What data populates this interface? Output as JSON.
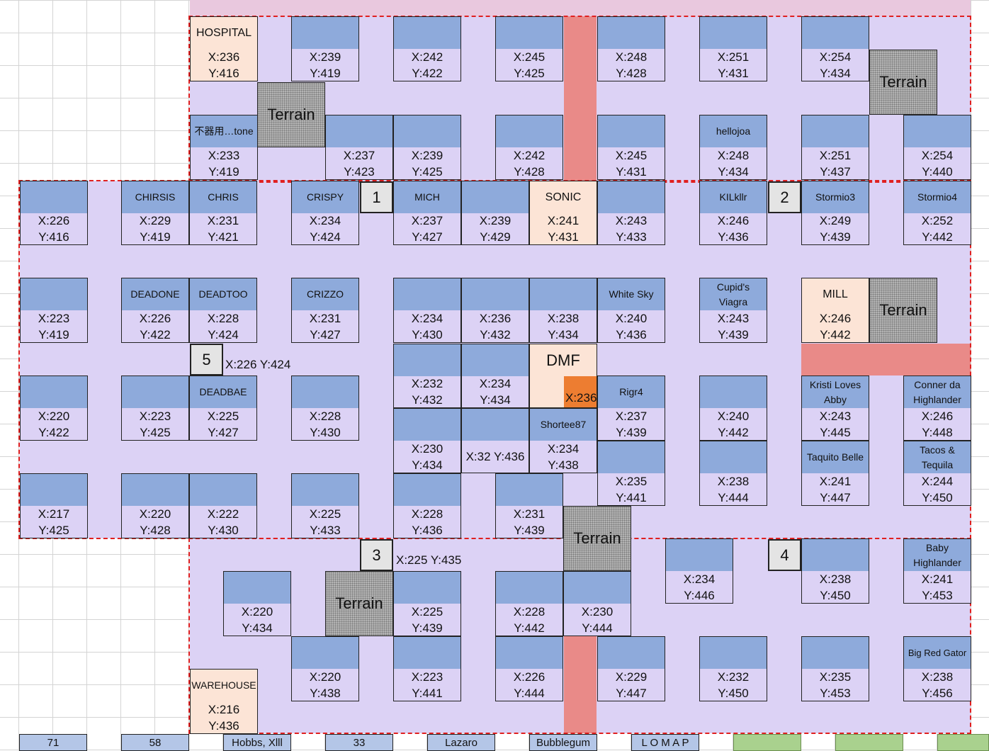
{
  "plots": {
    "r1": [
      {
        "label": "HOSPITAL",
        "x": "X:236",
        "y": "Y:416"
      },
      {
        "label": "",
        "x": "X:239",
        "y": "Y:419"
      },
      {
        "label": "",
        "x": "X:242",
        "y": "Y:422"
      },
      {
        "label": "",
        "x": "X:245",
        "y": "Y:425"
      },
      {
        "label": "",
        "x": "X:248",
        "y": "Y:428"
      },
      {
        "label": "",
        "x": "X:251",
        "y": "Y:431"
      },
      {
        "label": "",
        "x": "X:254",
        "y": "Y:434"
      }
    ],
    "r2": [
      {
        "label": "不器用…tone",
        "x": "X:233",
        "y": "Y:419"
      },
      {
        "label": "",
        "x": "X:237",
        "y": "Y:423"
      },
      {
        "label": "",
        "x": "X:239",
        "y": "Y:425"
      },
      {
        "label": "",
        "x": "X:242",
        "y": "Y:428"
      },
      {
        "label": "",
        "x": "X:245",
        "y": "Y:431"
      },
      {
        "label": "hellojoa",
        "x": "X:248",
        "y": "Y:434"
      },
      {
        "label": "",
        "x": "X:251",
        "y": "Y:437"
      },
      {
        "label": "",
        "x": "X:254",
        "y": "Y:440"
      }
    ],
    "r3": [
      {
        "label": "",
        "x": "X:226",
        "y": "Y:416"
      },
      {
        "label": "CHIRSIS",
        "x": "X:229",
        "y": "Y:419"
      },
      {
        "label": "CHRIS",
        "x": "X:231",
        "y": "Y:421"
      },
      {
        "label": "CRISPY",
        "x": "X:234",
        "y": "Y:424"
      },
      {
        "label": "MICH",
        "x": "X:237",
        "y": "Y:427"
      },
      {
        "label": "",
        "x": "X:239",
        "y": "Y:429"
      },
      {
        "label": "SONIC",
        "x": "X:241",
        "y": "Y:431"
      },
      {
        "label": "",
        "x": "X:243",
        "y": "Y:433"
      },
      {
        "label": "KILkllr",
        "x": "X:246",
        "y": "Y:436"
      },
      {
        "label": "Stormio3",
        "x": "X:249",
        "y": "Y:439"
      },
      {
        "label": "Stormio4",
        "x": "X:252",
        "y": "Y:442"
      }
    ],
    "r4": [
      {
        "label": "",
        "x": "X:223",
        "y": "Y:419"
      },
      {
        "label": "DEADONE",
        "x": "X:226",
        "y": "Y:422"
      },
      {
        "label": "DEADTOO",
        "x": "X:228",
        "y": "Y:424"
      },
      {
        "label": "CRIZZO",
        "x": "X:231",
        "y": "Y:427"
      },
      {
        "label": "",
        "x": "X:234",
        "y": "Y:430"
      },
      {
        "label": "",
        "x": "X:236",
        "y": "Y:432"
      },
      {
        "label": "",
        "x": "X:238",
        "y": "Y:434"
      },
      {
        "label": "White Sky",
        "x": "X:240",
        "y": "Y:436"
      },
      {
        "label": "Cupid's Viagra",
        "x": "X:243",
        "y": "Y:439"
      },
      {
        "label": "MILL",
        "x": "X:246",
        "y": "Y:442"
      }
    ],
    "r5": [
      {
        "label": "",
        "x": "X:232",
        "y": "Y:432"
      },
      {
        "label": "",
        "x": "X:234",
        "y": "Y:434"
      },
      {
        "label": "",
        "x": "X:220",
        "y": "Y:422"
      },
      {
        "label": "",
        "x": "X:223",
        "y": "Y:425"
      },
      {
        "label": "DEADBAE",
        "x": "X:225",
        "y": "Y:427"
      },
      {
        "label": "",
        "x": "X:228",
        "y": "Y:430"
      },
      {
        "label": "Rigr4",
        "x": "X:237",
        "y": "Y:439"
      },
      {
        "label": "",
        "x": "X:240",
        "y": "Y:442"
      },
      {
        "label": "Kristi Loves Abby",
        "x": "X:243",
        "y": "Y:445"
      },
      {
        "label": "Conner da Highlander",
        "x": "X:246",
        "y": "Y:448"
      }
    ],
    "r6": [
      {
        "label": "",
        "x": "X:230",
        "y": "Y:434"
      },
      {
        "label": "Shortee87",
        "x": "X:234",
        "y": "Y:438"
      },
      {
        "label": "",
        "x": "X:235",
        "y": "Y:441"
      },
      {
        "label": "",
        "x": "X:238",
        "y": "Y:444"
      },
      {
        "label": "Taquito Belle",
        "x": "X:241",
        "y": "Y:447"
      },
      {
        "label": "Tacos & Tequila",
        "x": "X:244",
        "y": "Y:450"
      }
    ],
    "r7": [
      {
        "label": "",
        "x": "X:217",
        "y": "Y:425"
      },
      {
        "label": "",
        "x": "X:220",
        "y": "Y:428"
      },
      {
        "label": "",
        "x": "X:222",
        "y": "Y:430"
      },
      {
        "label": "",
        "x": "X:225",
        "y": "Y:433"
      },
      {
        "label": "",
        "x": "X:228",
        "y": "Y:436"
      },
      {
        "label": "",
        "x": "X:231",
        "y": "Y:439"
      }
    ],
    "r8": [
      {
        "label": "",
        "x": "X:234",
        "y": "Y:446"
      },
      {
        "label": "",
        "x": "X:238",
        "y": "Y:450"
      },
      {
        "label": "Baby Highlander",
        "x": "X:241",
        "y": "Y:453"
      }
    ],
    "r9": [
      {
        "label": "",
        "x": "X:220",
        "y": "Y:434"
      },
      {
        "label": "",
        "x": "X:225",
        "y": "Y:439"
      },
      {
        "label": "",
        "x": "X:228",
        "y": "Y:442"
      },
      {
        "label": "",
        "x": "X:230",
        "y": "Y:444"
      }
    ],
    "r10": [
      {
        "label": "WAREHOUSE",
        "x": "X:216",
        "y": "Y:436"
      },
      {
        "label": "",
        "x": "X:220",
        "y": "Y:438"
      },
      {
        "label": "",
        "x": "X:223",
        "y": "Y:441"
      },
      {
        "label": "",
        "x": "X:226",
        "y": "Y:444"
      },
      {
        "label": "",
        "x": "X:229",
        "y": "Y:447"
      },
      {
        "label": "",
        "x": "X:232",
        "y": "Y:450"
      },
      {
        "label": "",
        "x": "X:235",
        "y": "Y:453"
      },
      {
        "label": "Big Red Gator",
        "x": "X:238",
        "y": "Y:456"
      }
    ]
  },
  "dmf": {
    "label": "DMF",
    "coord": "X:236"
  },
  "terrain_label": "Terrain",
  "markers": [
    "1",
    "2",
    "3",
    "4",
    "5"
  ],
  "notes": {
    "n5": "X:226 Y:424",
    "n3": "X:225 Y:435",
    "nmid": "X:32 Y:436"
  },
  "bottom_row": [
    "71",
    "58",
    "Hobbs, Xlll",
    "33",
    "Lazaro",
    "Bubblegum",
    "L O M A P",
    "",
    "",
    ""
  ],
  "colors": {
    "zone": "#dcd2f5",
    "plot_head": "#8eaadb",
    "special": "#fce4d6",
    "road": "#e98a88",
    "outline": "#e02020",
    "terrain": "#b3b3b3",
    "accent": "#ed7d31"
  }
}
